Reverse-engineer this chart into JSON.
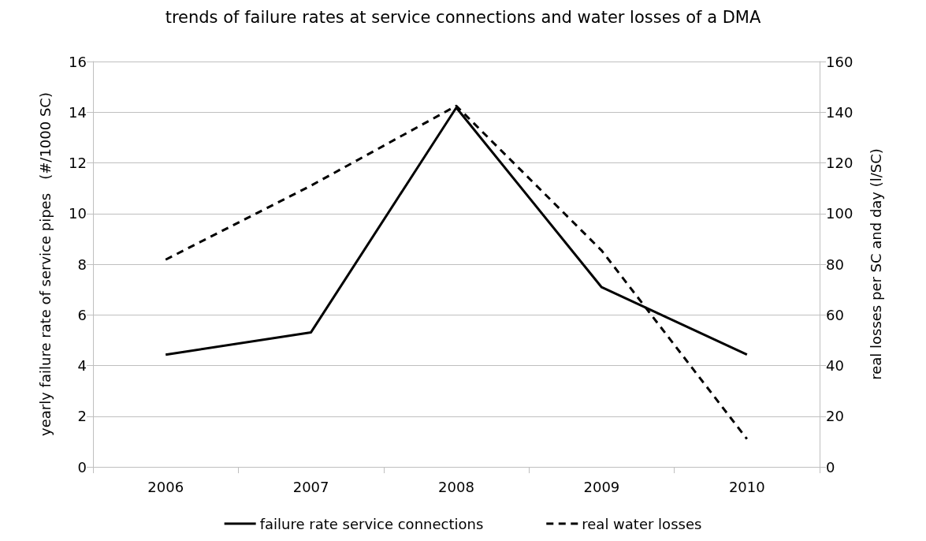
{
  "chart_data": {
    "type": "line",
    "title": "trends of failure rates at service connections and water losses of a DMA",
    "ylabel": "yearly failure rate of service pipes   (#/1000 SC)",
    "y2label": "real losses per SC and day (l/SC)",
    "categories": [
      "2006",
      "2007",
      "2008",
      "2009",
      "2010"
    ],
    "series": [
      {
        "name": "failure rate service connections",
        "color": "#000000",
        "values": [
          4.43,
          5.31,
          14.18,
          7.09,
          4.43
        ],
        "line_style": "solid"
      },
      {
        "name": "real water losses",
        "color": "#000000",
        "values": [
          81.8,
          111,
          142.5,
          85.4,
          11
        ],
        "axis": "y2",
        "line_style": "dashed"
      }
    ],
    "ylim": [
      0,
      16
    ],
    "yticks": [
      0,
      2,
      4,
      6,
      8,
      10,
      12,
      14,
      16
    ],
    "y2lim": [
      0,
      160
    ],
    "y2ticks": [
      0,
      20,
      40,
      60,
      80,
      100,
      120,
      140,
      160
    ],
    "grid": "y",
    "legend": "bottom",
    "marker": "none"
  }
}
